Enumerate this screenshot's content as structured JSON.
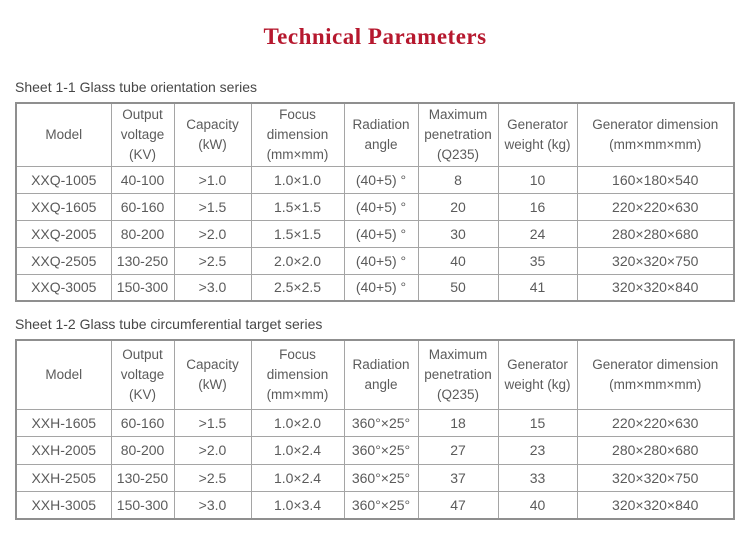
{
  "page": {
    "title": "Technical Parameters",
    "title_color": "#b6182e",
    "text_color": "#5b5b5b",
    "border_color": "#8f8f8f"
  },
  "sheet1": {
    "caption": "Sheet 1-1 Glass tube orientation series",
    "headers": [
      "Model",
      "Output voltage (KV)",
      "Capacity (kW)",
      "Focus dimension (mm×mm)",
      "Radiation angle",
      "Maximum penetration (Q235)",
      "Generator weight (kg)",
      "Generator dimension (mm×mm×mm)"
    ],
    "rows": [
      [
        "XXQ-1005",
        "40-100",
        ">1.0",
        "1.0×1.0",
        "(40+5) °",
        "8",
        "10",
        "160×180×540"
      ],
      [
        "XXQ-1605",
        "60-160",
        ">1.5",
        "1.5×1.5",
        "(40+5) °",
        "20",
        "16",
        "220×220×630"
      ],
      [
        "XXQ-2005",
        "80-200",
        ">2.0",
        "1.5×1.5",
        "(40+5) °",
        "30",
        "24",
        "280×280×680"
      ],
      [
        "XXQ-2505",
        "130-250",
        ">2.5",
        "2.0×2.0",
        "(40+5) °",
        "40",
        "35",
        "320×320×750"
      ],
      [
        "XXQ-3005",
        "150-300",
        ">3.0",
        "2.5×2.5",
        "(40+5) °",
        "50",
        "41",
        "320×320×840"
      ]
    ]
  },
  "sheet2": {
    "caption": "Sheet 1-2 Glass tube circumferential target series",
    "headers": [
      "Model",
      "Output voltage (KV)",
      "Capacity (kW)",
      "Focus dimension (mm×mm)",
      "Radiation angle",
      "Maximum penetration (Q235)",
      "Generator weight (kg)",
      "Generator dimension (mm×mm×mm)"
    ],
    "rows": [
      [
        "XXH-1605",
        "60-160",
        ">1.5",
        "1.0×2.0",
        "360°×25°",
        "18",
        "15",
        "220×220×630"
      ],
      [
        "XXH-2005",
        "80-200",
        ">2.0",
        "1.0×2.4",
        "360°×25°",
        "27",
        "23",
        "280×280×680"
      ],
      [
        "XXH-2505",
        "130-250",
        ">2.5",
        "1.0×2.4",
        "360°×25°",
        "37",
        "33",
        "320×320×750"
      ],
      [
        "XXH-3005",
        "150-300",
        ">3.0",
        "1.0×3.4",
        "360°×25°",
        "47",
        "40",
        "320×320×840"
      ]
    ]
  }
}
